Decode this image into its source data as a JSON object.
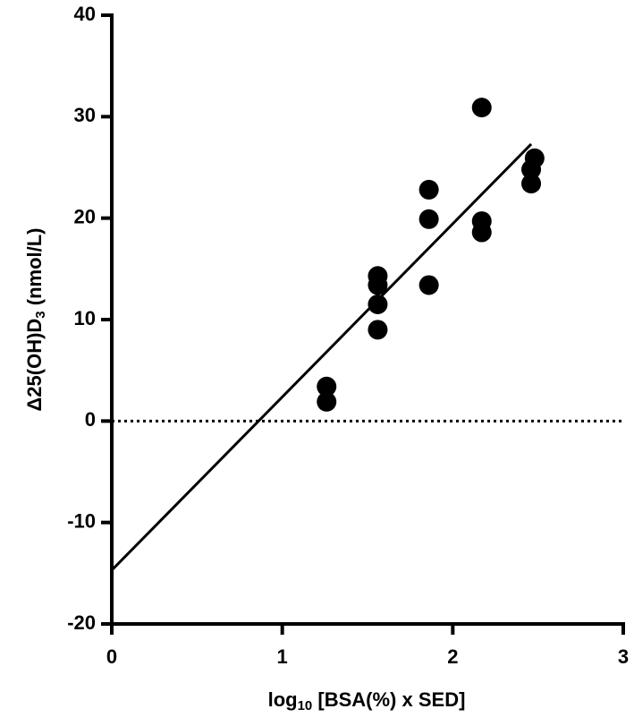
{
  "chart_data": {
    "type": "scatter",
    "xlabel": [
      "log",
      "10",
      " [BSA(%) x SED]"
    ],
    "ylabel": [
      "Δ25(OH)D",
      "3",
      " (nmol/L)"
    ],
    "xlim": [
      0,
      3
    ],
    "xticks": [
      0,
      1,
      2,
      3
    ],
    "ylim": [
      -20,
      40
    ],
    "yticks": [
      -20,
      -10,
      0,
      10,
      20,
      30,
      40
    ],
    "color": "#000000",
    "points": {
      "x": [
        1.26,
        1.26,
        1.56,
        1.56,
        1.56,
        1.56,
        1.86,
        1.86,
        1.86,
        2.17,
        2.17,
        2.17,
        2.48,
        2.46,
        2.46
      ],
      "y": [
        3.4,
        1.9,
        14.3,
        13.4,
        11.5,
        9.0,
        22.8,
        19.9,
        13.4,
        30.9,
        19.7,
        18.6,
        25.9,
        24.8,
        23.4
      ]
    },
    "fit_line": {
      "x": [
        0,
        2.46
      ],
      "y": [
        -14.7,
        27.3
      ]
    },
    "reference_line": 0
  }
}
